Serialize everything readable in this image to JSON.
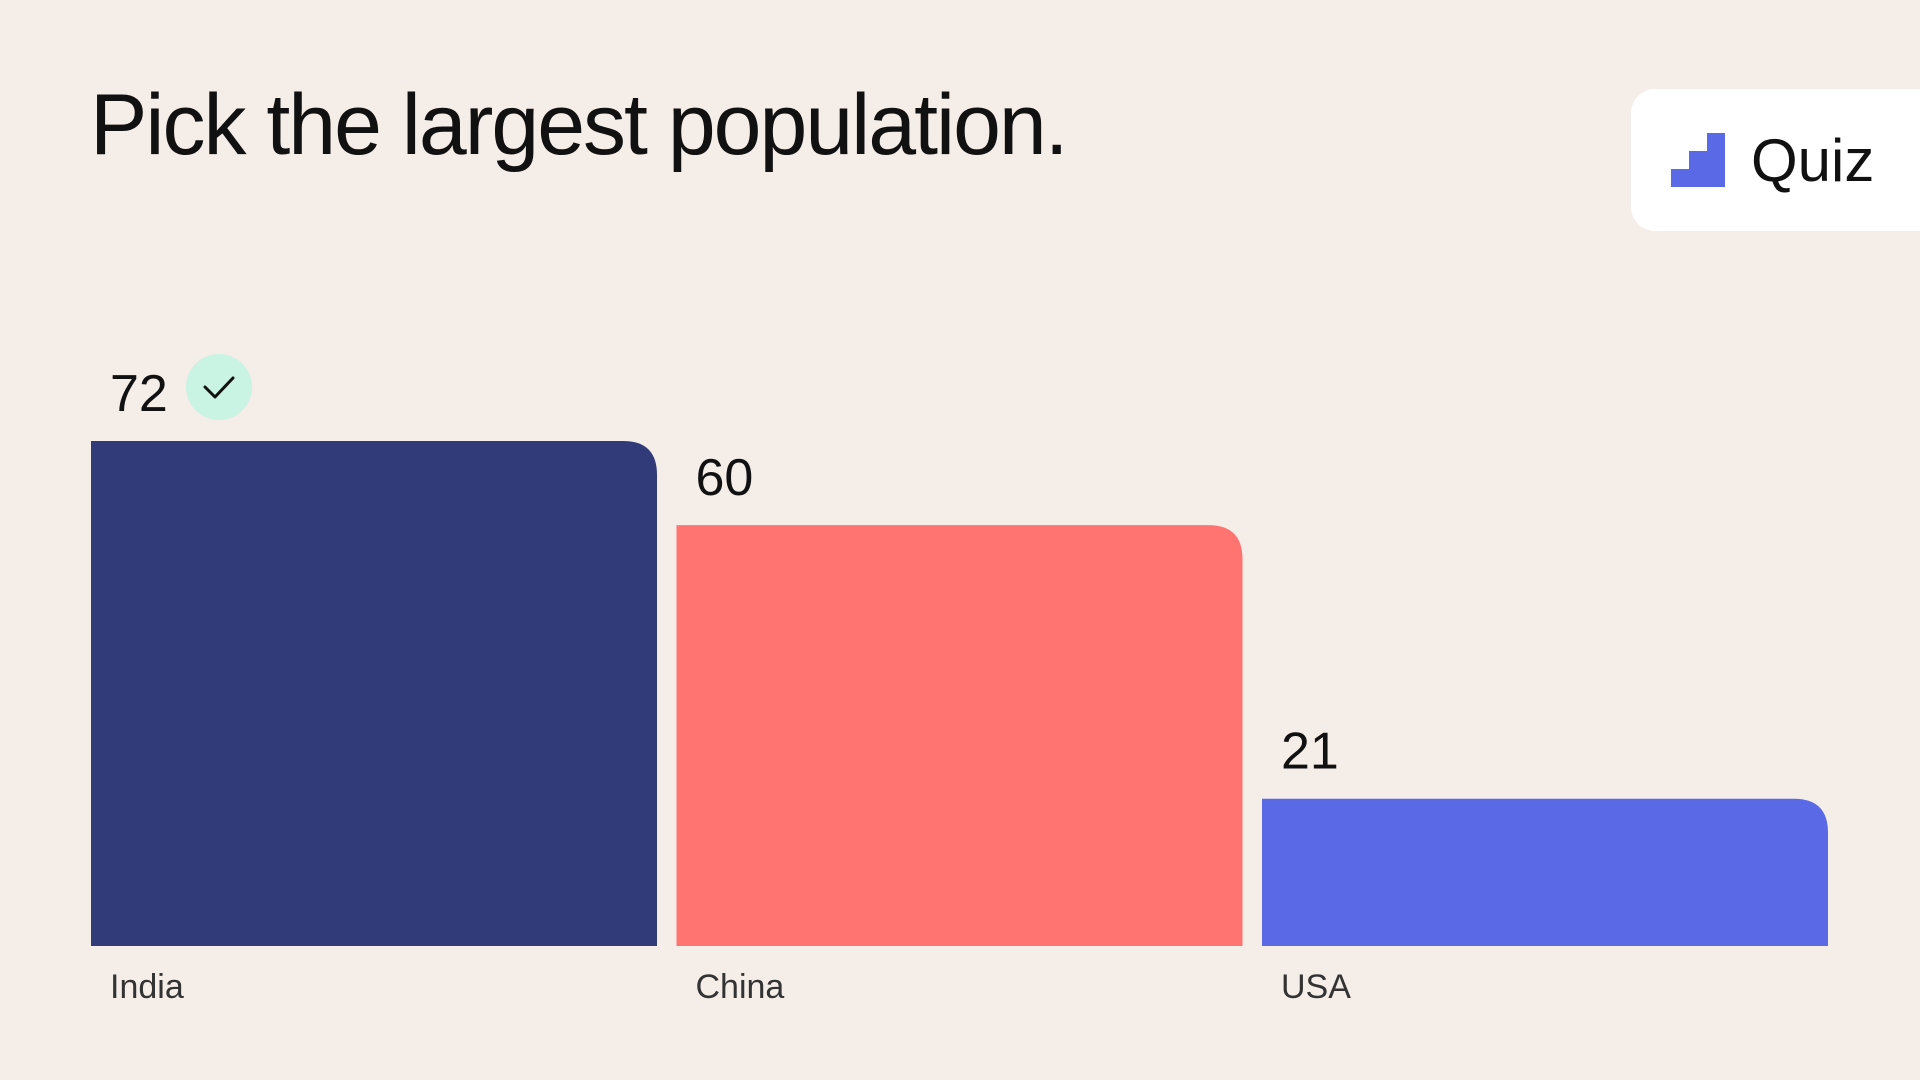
{
  "question": "Pick the largest population.",
  "badge": {
    "label": "Quiz",
    "icon": "stairs-icon",
    "icon_color": "#5a6ae6"
  },
  "correct_icon": "check-icon",
  "correct_color": "#c9f3e3",
  "chart_data": {
    "type": "bar",
    "categories": [
      "India",
      "China",
      "USA"
    ],
    "values": [
      72,
      60,
      21
    ],
    "colors": [
      "#323b7a",
      "#ff7370",
      "#5a6ae6"
    ],
    "correct_index": 0,
    "ylim": [
      0,
      72
    ],
    "grid": false
  }
}
